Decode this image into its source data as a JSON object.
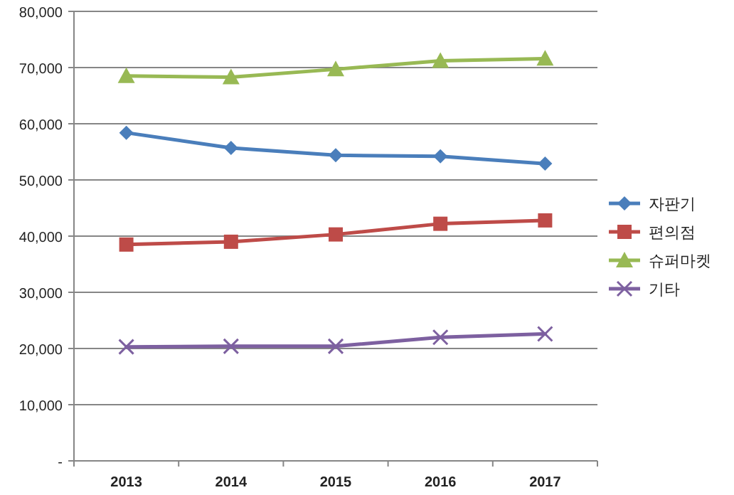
{
  "chart_data": {
    "type": "line",
    "categories": [
      "2013",
      "2014",
      "2015",
      "2016",
      "2017"
    ],
    "series": [
      {
        "name": "자판기",
        "color": "#4a7ebb",
        "marker": "diamond",
        "values": [
          58400,
          55700,
          54400,
          54200,
          52900
        ]
      },
      {
        "name": "편의점",
        "color": "#be4b48",
        "marker": "square",
        "values": [
          38500,
          39000,
          40300,
          42200,
          42800
        ]
      },
      {
        "name": "슈퍼마켓",
        "color": "#98b954",
        "marker": "triangle",
        "values": [
          68500,
          68300,
          69700,
          71200,
          71600
        ]
      },
      {
        "name": "기타",
        "color": "#7d60a0",
        "marker": "cross",
        "values": [
          20300,
          20400,
          20400,
          22000,
          22600
        ]
      }
    ],
    "ylim": [
      0,
      80000
    ],
    "yticks": [
      {
        "value": 0,
        "label": "-"
      },
      {
        "value": 10000,
        "label": "10,000"
      },
      {
        "value": 20000,
        "label": "20,000"
      },
      {
        "value": 30000,
        "label": "30,000"
      },
      {
        "value": 40000,
        "label": "40,000"
      },
      {
        "value": 50000,
        "label": "50,000"
      },
      {
        "value": 60000,
        "label": "60,000"
      },
      {
        "value": 70000,
        "label": "70,000"
      },
      {
        "value": 80000,
        "label": "80,000"
      }
    ],
    "grid": "y",
    "legend": "right"
  }
}
